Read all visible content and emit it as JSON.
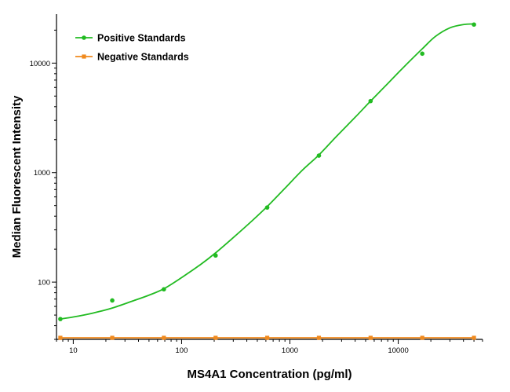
{
  "chart_data": {
    "type": "scatter",
    "title": "",
    "xlabel": "MS4A1 Concentration (pg/ml)",
    "ylabel": "Median Fluorescent Intensity",
    "xscale": "log",
    "yscale": "log",
    "xlim": [
      7,
      60000
    ],
    "ylim": [
      30,
      28000
    ],
    "x_ticks": [
      {
        "value": 10,
        "label": "10"
      },
      {
        "value": 100,
        "label": "100"
      },
      {
        "value": 1000,
        "label": "1000"
      },
      {
        "value": 10000,
        "label": "10000"
      }
    ],
    "y_ticks": [
      {
        "value": 100,
        "label": "100"
      },
      {
        "value": 1000,
        "label": "1000"
      },
      {
        "value": 10000,
        "label": "10000"
      }
    ],
    "grid": false,
    "legend_position": "top-left",
    "series": [
      {
        "name": "Positive Standards",
        "color": "#22bb22",
        "marker": "circle",
        "fit_curve": true,
        "x": [
          7.6,
          22.9,
          68.6,
          206,
          617,
          1852,
          5556,
          16667,
          50000
        ],
        "y": [
          46,
          68,
          86,
          175,
          480,
          1430,
          4500,
          12200,
          22500
        ],
        "curve_x": [
          7.6,
          10,
          15,
          22.9,
          35,
          50,
          68.6,
          100,
          150,
          206,
          300,
          450,
          617,
          900,
          1300,
          1852,
          2700,
          4000,
          5556,
          8000,
          11000,
          16667,
          22000,
          30000,
          40000,
          50000
        ],
        "curve_y": [
          46,
          48,
          52,
          58,
          67,
          76,
          87,
          110,
          145,
          185,
          255,
          365,
          490,
          720,
          1050,
          1450,
          2150,
          3200,
          4500,
          6500,
          9000,
          13500,
          17500,
          21000,
          22500,
          22800
        ]
      },
      {
        "name": "Negative Standards",
        "color": "#f08a1e",
        "marker": "square",
        "fit_curve": false,
        "x": [
          7.6,
          22.9,
          68.6,
          206,
          617,
          1852,
          5556,
          16667,
          50000
        ],
        "y": [
          31,
          31,
          31,
          31,
          31,
          31,
          31,
          31,
          31
        ]
      }
    ]
  }
}
